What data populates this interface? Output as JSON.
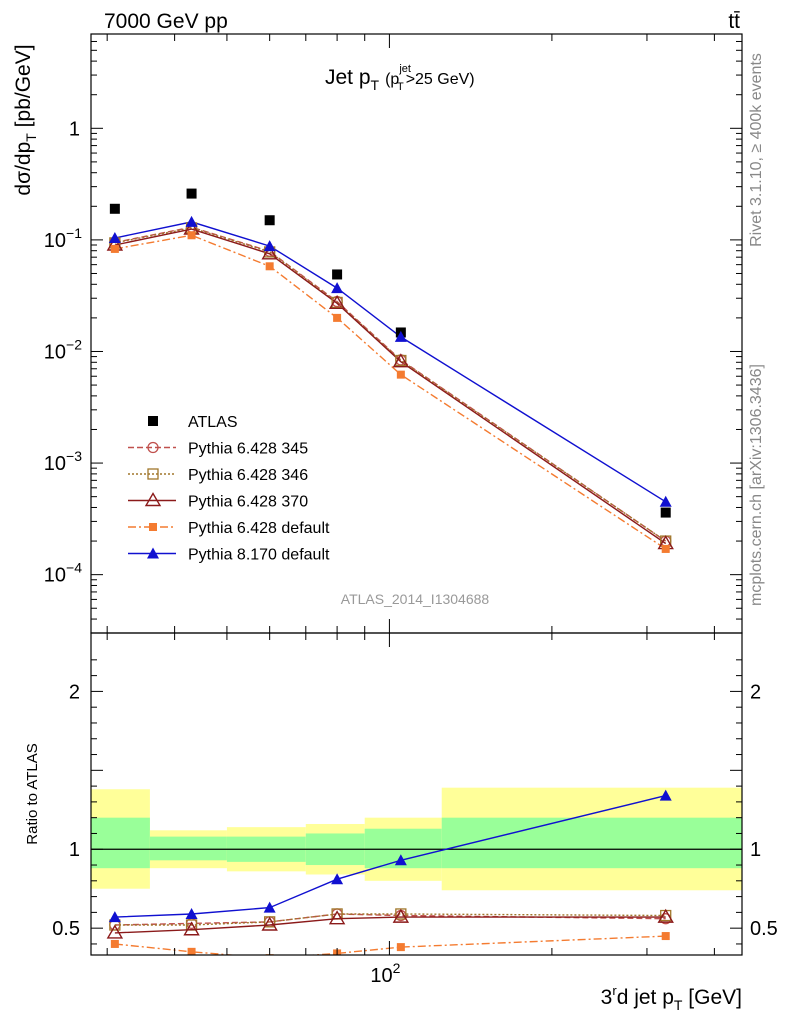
{
  "header": {
    "left": "7000 GeV pp",
    "right": "tt̄"
  },
  "title": {
    "main": "Jet p",
    "main_sub": "T",
    "paren_open": "(p",
    "paren_sup": "jet",
    "paren_sub": "T",
    "paren_rest": ">25 GeV)"
  },
  "side_labels": {
    "rivet": "Rivet 3.1.10, ≥ 400k events",
    "mcplots": "mcplots.cern.ch [arXiv:1306.3436]"
  },
  "analysis_id": "ATLAS_2014_I1304688",
  "colors": {
    "atlas": "#000000",
    "py345": "#c0504d",
    "py346": "#a0772b",
    "py370": "#8b1a1a",
    "py6def": "#f47b30",
    "py8def": "#1010d0",
    "band_outer": "#ffff99",
    "band_inner": "#99ff99"
  },
  "chart_data": [
    {
      "type": "scatter",
      "y_scale": "log",
      "x_scale": "log",
      "ylabel": "dσ/dp_T [pb/GeV]",
      "ylabel_main": "dσ/dp",
      "ylabel_sub": "T",
      "ylabel_rest": " [pb/GeV]",
      "xlim": [
        28,
        450
      ],
      "ylim": [
        3e-05,
        7
      ],
      "y_ticks": [
        {
          "v": 0.0001,
          "base": "10",
          "exp": "−4"
        },
        {
          "v": 0.001,
          "base": "10",
          "exp": "−3"
        },
        {
          "v": 0.01,
          "base": "10",
          "exp": "−2"
        },
        {
          "v": 0.1,
          "base": "10",
          "exp": "−1"
        },
        {
          "v": 1,
          "base": "1",
          "exp": ""
        }
      ],
      "x": [
        31,
        43,
        60,
        80,
        105,
        325
      ],
      "series": [
        {
          "key": "atlas",
          "name": "ATLAS",
          "values": [
            0.19,
            0.26,
            0.15,
            0.049,
            0.0148,
            0.00036
          ]
        },
        {
          "key": "py345",
          "name": "Pythia 6.428 345",
          "values": [
            0.095,
            0.13,
            0.079,
            0.028,
            0.0084,
            0.0002
          ]
        },
        {
          "key": "py346",
          "name": "Pythia 6.428 346",
          "values": [
            0.094,
            0.128,
            0.078,
            0.0275,
            0.0083,
            0.0002
          ]
        },
        {
          "key": "py370",
          "name": "Pythia 6.428 370",
          "values": [
            0.09,
            0.125,
            0.075,
            0.027,
            0.0081,
            0.00019
          ]
        },
        {
          "key": "py6def",
          "name": "Pythia 6.428 default",
          "values": [
            0.083,
            0.11,
            0.058,
            0.02,
            0.0062,
            0.00017
          ]
        },
        {
          "key": "py8def",
          "name": "Pythia 8.170 default",
          "values": [
            0.104,
            0.145,
            0.088,
            0.037,
            0.0135,
            0.00045
          ]
        }
      ]
    },
    {
      "type": "line",
      "ylabel": "Ratio to ATLAS",
      "xlabel": "3ʳd jet p_T [GeV]",
      "xlabel_main": "3",
      "xlabel_sup": "r",
      "xlabel_mid": "d jet p",
      "xlabel_sub": "T",
      "xlabel_rest": " [GeV]",
      "x_tick_label": {
        "v": 100,
        "base": "10",
        "exp": "2"
      },
      "ylim": [
        0.33,
        2.37
      ],
      "y_ticks": [
        0.5,
        1,
        2
      ],
      "y_tick_labels": [
        "0.5",
        "1",
        "2"
      ],
      "bands": [
        {
          "x0": 28,
          "x1": 36,
          "inner": [
            0.88,
            1.2
          ],
          "outer": [
            0.75,
            1.38
          ]
        },
        {
          "x0": 36,
          "x1": 50,
          "inner": [
            0.93,
            1.08
          ],
          "outer": [
            0.88,
            1.12
          ]
        },
        {
          "x0": 50,
          "x1": 70,
          "inner": [
            0.92,
            1.08
          ],
          "outer": [
            0.86,
            1.14
          ]
        },
        {
          "x0": 70,
          "x1": 90,
          "inner": [
            0.9,
            1.1
          ],
          "outer": [
            0.84,
            1.16
          ]
        },
        {
          "x0": 90,
          "x1": 125,
          "inner": [
            0.88,
            1.13
          ],
          "outer": [
            0.8,
            1.2
          ]
        },
        {
          "x0": 125,
          "x1": 450,
          "inner": [
            0.88,
            1.2
          ],
          "outer": [
            0.74,
            1.39
          ]
        }
      ],
      "x": [
        31,
        43,
        60,
        80,
        105,
        325
      ],
      "series": [
        {
          "key": "py345",
          "values": [
            0.52,
            0.53,
            0.54,
            0.59,
            0.58,
            0.56
          ]
        },
        {
          "key": "py346",
          "values": [
            0.52,
            0.52,
            0.54,
            0.59,
            0.59,
            0.58
          ]
        },
        {
          "key": "py370",
          "values": [
            0.47,
            0.49,
            0.52,
            0.56,
            0.57,
            0.57
          ]
        },
        {
          "key": "py6def",
          "values": [
            0.4,
            0.35,
            0.31,
            0.34,
            0.38,
            0.45
          ]
        },
        {
          "key": "py8def",
          "values": [
            0.57,
            0.59,
            0.63,
            0.81,
            0.93,
            1.34
          ]
        }
      ]
    }
  ]
}
